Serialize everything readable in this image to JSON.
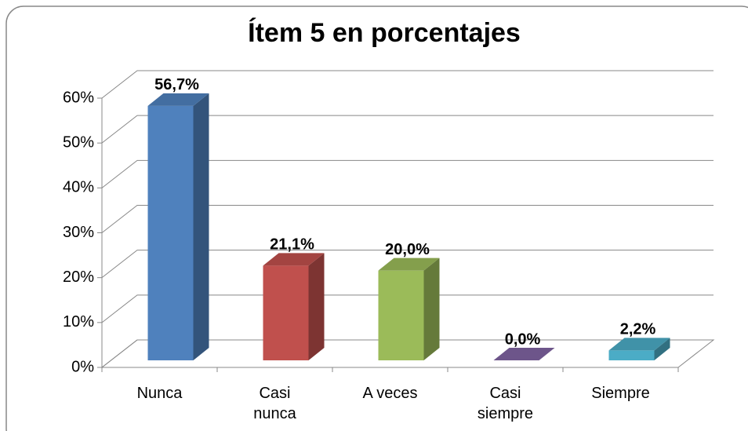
{
  "chart_data": {
    "type": "bar3d",
    "title": "Ítem 5 en porcentajes",
    "categories": [
      "Nunca",
      "Casi nunca",
      "A veces",
      "Casi siempre",
      "Siempre"
    ],
    "values": [
      56.7,
      21.1,
      20.0,
      0.0,
      2.2
    ],
    "value_labels": [
      "56,7%",
      "21,1%",
      "20,0%",
      "0,0%",
      "2,2%"
    ],
    "colors": [
      "#4f81bd",
      "#c0504d",
      "#9bbb59",
      "#8064a2",
      "#4bacc6"
    ],
    "ylim": [
      0,
      60
    ],
    "yticks": [
      {
        "value": 0,
        "label": "0%"
      },
      {
        "value": 10,
        "label": "10%"
      },
      {
        "value": 20,
        "label": "20%"
      },
      {
        "value": 30,
        "label": "30%"
      },
      {
        "value": 40,
        "label": "40%"
      },
      {
        "value": 50,
        "label": "50%"
      },
      {
        "value": 60,
        "label": "60%"
      }
    ],
    "grid": true
  }
}
